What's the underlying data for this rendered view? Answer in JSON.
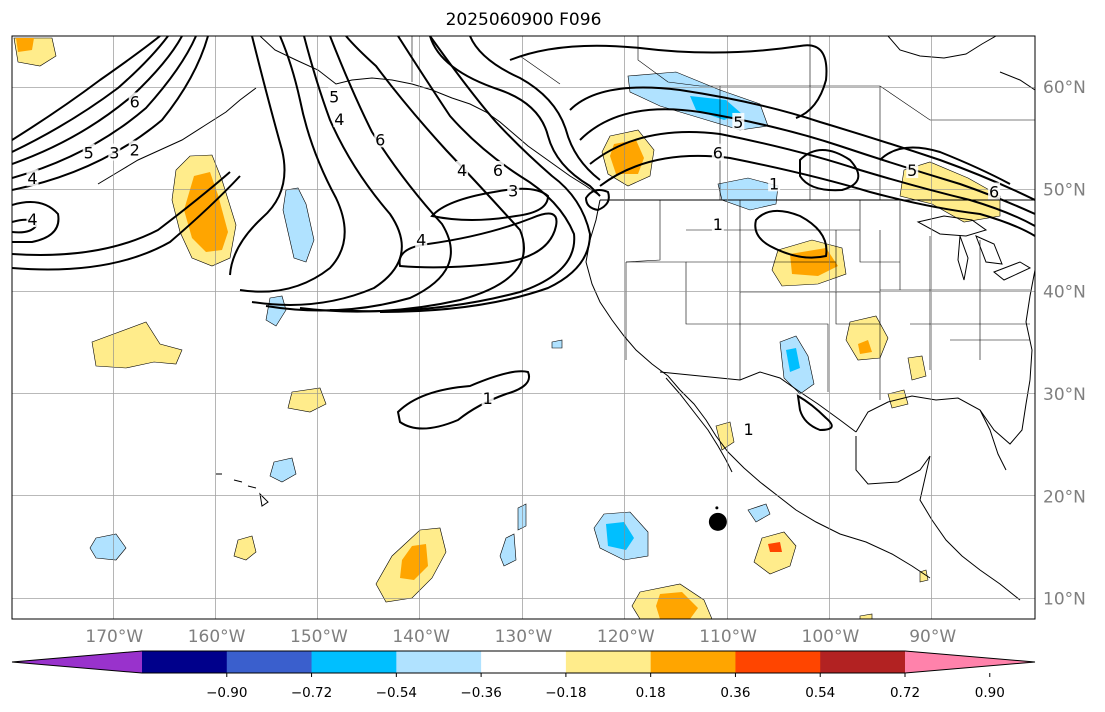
{
  "title": "2025060900 F096",
  "map": {
    "projection": "plate-carree",
    "lon_range": [
      -180,
      -80
    ],
    "lat_range": [
      8,
      65
    ],
    "lon_ticks": [
      {
        "value": -170,
        "label": "170°W"
      },
      {
        "value": -160,
        "label": "160°W"
      },
      {
        "value": -150,
        "label": "150°W"
      },
      {
        "value": -140,
        "label": "140°W"
      },
      {
        "value": -130,
        "label": "130°W"
      },
      {
        "value": -120,
        "label": "120°W"
      },
      {
        "value": -110,
        "label": "110°W"
      },
      {
        "value": -100,
        "label": "100°W"
      },
      {
        "value": -90,
        "label": "90°W"
      }
    ],
    "lat_ticks": [
      {
        "value": 60,
        "label": "60°N"
      },
      {
        "value": 50,
        "label": "50°N"
      },
      {
        "value": 40,
        "label": "40°N"
      },
      {
        "value": 30,
        "label": "30°N"
      },
      {
        "value": 20,
        "label": "20°N"
      },
      {
        "value": 10,
        "label": "10°N"
      }
    ],
    "contour_labels": [
      {
        "text": "6",
        "lon": -168.0,
        "lat": 58.5
      },
      {
        "text": "5",
        "lon": -172.5,
        "lat": 53.5
      },
      {
        "text": "3",
        "lon": -170.0,
        "lat": 53.5
      },
      {
        "text": "2",
        "lon": -168.0,
        "lat": 53.8
      },
      {
        "text": "4",
        "lon": -178.0,
        "lat": 51.0
      },
      {
        "text": "4",
        "lon": -178.0,
        "lat": 47.0
      },
      {
        "text": "5",
        "lon": -148.5,
        "lat": 59.0
      },
      {
        "text": "4",
        "lon": -148.0,
        "lat": 56.8
      },
      {
        "text": "6",
        "lon": -144.0,
        "lat": 54.8
      },
      {
        "text": "4",
        "lon": -136.0,
        "lat": 51.8
      },
      {
        "text": "6",
        "lon": -132.5,
        "lat": 51.8
      },
      {
        "text": "3",
        "lon": -131.0,
        "lat": 49.8
      },
      {
        "text": "4",
        "lon": -140.0,
        "lat": 45.0
      },
      {
        "text": "1",
        "lon": -133.5,
        "lat": 29.5
      },
      {
        "text": "5",
        "lon": -109.0,
        "lat": 56.5
      },
      {
        "text": "6",
        "lon": -111.0,
        "lat": 53.5
      },
      {
        "text": "1",
        "lon": -105.5,
        "lat": 50.5
      },
      {
        "text": "1",
        "lon": -111.0,
        "lat": 46.5
      },
      {
        "text": "1",
        "lon": -108.0,
        "lat": 26.5
      },
      {
        "text": "5",
        "lon": -92.0,
        "lat": 51.8
      },
      {
        "text": "6",
        "lon": -84.0,
        "lat": 49.7
      }
    ],
    "marker": {
      "lon": -111.0,
      "lat": 17.5
    }
  },
  "colorbar": {
    "colors": [
      "#9932cc",
      "#00008b",
      "#3a5fcd",
      "#00bfff",
      "#b0e2ff",
      "#ffffff",
      "#ffec8b",
      "#ffa500",
      "#ff4500",
      "#b22222",
      "#ff82ab"
    ],
    "tick_labels": [
      "−0.90",
      "−0.72",
      "−0.54",
      "−0.36",
      "−0.18",
      "0.18",
      "0.36",
      "0.54",
      "0.72",
      "0.90"
    ]
  }
}
